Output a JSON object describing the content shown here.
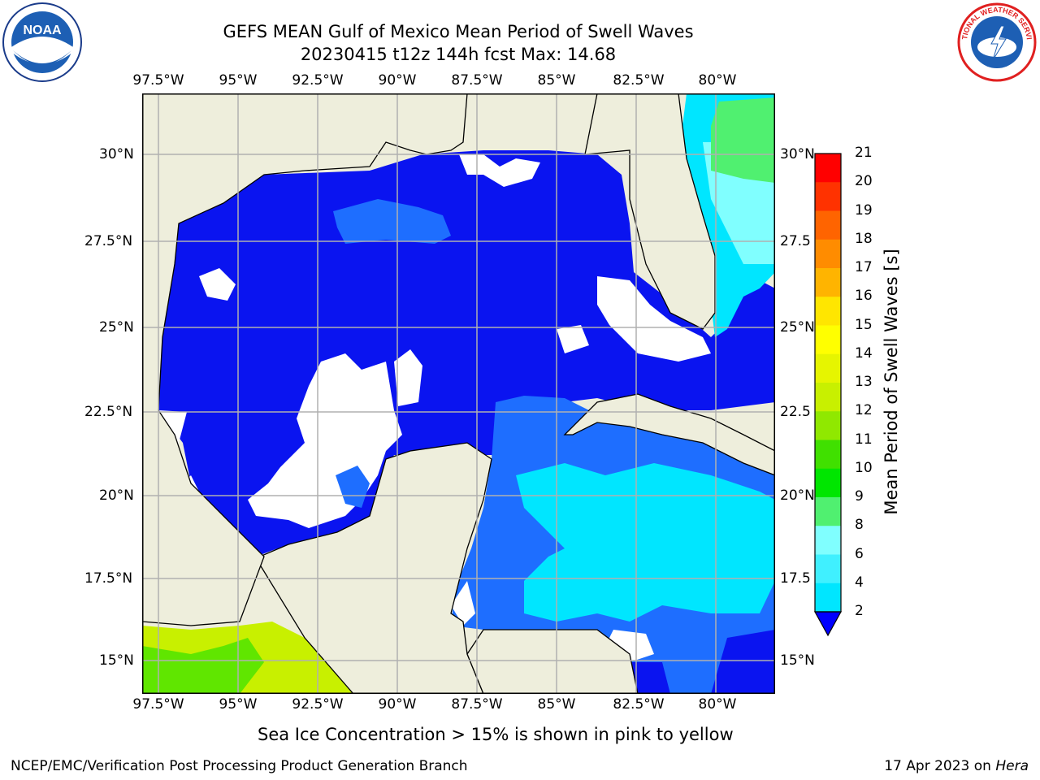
{
  "title": {
    "line1": "GEFS MEAN Gulf of Mexico Mean Period of Swell Waves",
    "line2": "20230415 t12z 144h fcst   Max: 14.68"
  },
  "map": {
    "lon_labels": [
      "97.5°W",
      "95°W",
      "92.5°W",
      "90°W",
      "87.5°W",
      "85°W",
      "82.5°W",
      "80°W"
    ],
    "lat_labels_left": [
      "30°N",
      "27.5°N",
      "25°N",
      "22.5°N",
      "20°N",
      "17.5°N",
      "15°N"
    ],
    "lat_labels_right": [
      "30°N",
      "27.5",
      "25°N",
      "22.5",
      "20°N",
      "17.5",
      "15°N"
    ],
    "land_color": "#eeeedc",
    "grid_color": "#b0b0b0"
  },
  "colorbar": {
    "title": "Mean Period of Swell Waves [s]",
    "ticks": [
      "2",
      "4",
      "6",
      "8",
      "9",
      "10",
      "11",
      "12",
      "13",
      "14",
      "15",
      "16",
      "17",
      "18",
      "19",
      "20",
      "21"
    ],
    "colors": [
      "#1464f0",
      "#00e6ff",
      "#40f0ff",
      "#80ffff",
      "#50f070",
      "#00e600",
      "#40e000",
      "#90e800",
      "#c8f000",
      "#e6f500",
      "#ffff00",
      "#ffe600",
      "#ffb400",
      "#ff8c00",
      "#ff6400",
      "#ff3200",
      "#ff0000"
    ],
    "extend_color": "#0000ff"
  },
  "subtitle": "Sea Ice Concentration > 15% is shown in pink to yellow",
  "footer": {
    "left": "NCEP/EMC/Verification Post Processing Product Generation Branch",
    "right_date": "17 Apr 2023 on ",
    "right_machine": "Hera"
  },
  "logos": {
    "left": "NOAA",
    "right": "NATIONAL WEATHER SERVICE"
  }
}
